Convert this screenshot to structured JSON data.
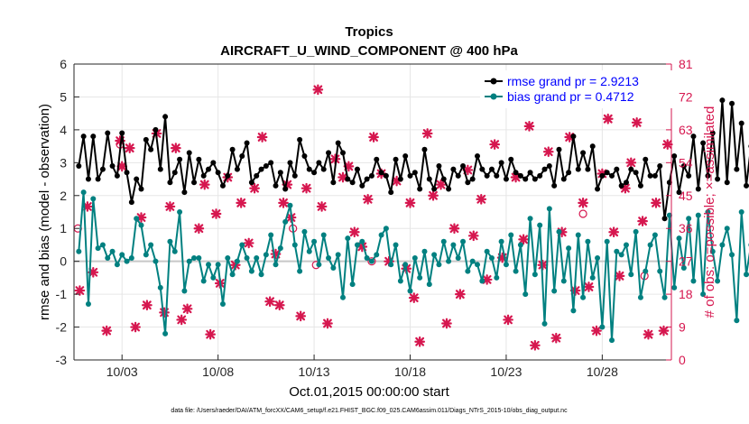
{
  "chart_data": {
    "type": "line",
    "title": "Tropics",
    "subtitle": "AIRCRAFT_U_WIND_COMPONENT @ 400 hPa",
    "xlabel": "Oct.01,2015 00:00:00 start",
    "ylabel_left": "rmse and bias (model - observation)",
    "ylabel_right": "# of obs: o=possible; ×=assimilated",
    "ylim_left": [
      -3,
      6
    ],
    "ylim_right": [
      0,
      81
    ],
    "xlim_days": [
      0.5,
      31.6
    ],
    "x_ticks": [
      {
        "day": 3,
        "label": "10/03"
      },
      {
        "day": 8,
        "label": "10/08"
      },
      {
        "day": 13,
        "label": "10/13"
      },
      {
        "day": 18,
        "label": "10/18"
      },
      {
        "day": 23,
        "label": "10/23"
      },
      {
        "day": 28,
        "label": "10/28"
      }
    ],
    "y_ticks_left": [
      -3,
      -2,
      -1,
      0,
      1,
      2,
      3,
      4,
      5,
      6
    ],
    "y_ticks_right": [
      0,
      9,
      18,
      27,
      36,
      45,
      54,
      63,
      72,
      81
    ],
    "grid": true,
    "legend_position": "top-right",
    "footnote": "data file: /Users/raeder/DAI/ATM_forcXX/CAM6_setup/f.e21.FHIST_BGC.f09_025.CAM6assim.011/Diags_NTrS_2015-10/obs_diag_output.nc",
    "step_days": 0.25,
    "x_start_day": 0.75,
    "series": [
      {
        "name": "rmse",
        "legend": "rmse grand pr = 2.9213",
        "color": "#000000",
        "values": [
          2.9,
          3.8,
          2.5,
          3.8,
          2.5,
          2.8,
          3.9,
          2.9,
          2.6,
          3.9,
          2.7,
          1.8,
          2.5,
          2.2,
          3.7,
          3.4,
          4.0,
          2.8,
          4.4,
          2.4,
          2.7,
          3.1,
          2.1,
          3.3,
          2.4,
          3.1,
          2.6,
          2.8,
          3.0,
          2.7,
          2.3,
          2.6,
          3.4,
          2.8,
          3.2,
          3.6,
          2.4,
          2.6,
          2.8,
          2.9,
          3.0,
          2.3,
          2.7,
          2.2,
          3.0,
          2.6,
          3.7,
          3.2,
          2.8,
          2.7,
          3.0,
          2.8,
          3.3,
          2.4,
          3.6,
          3.3,
          2.5,
          2.4,
          2.8,
          2.3,
          2.5,
          2.6,
          3.1,
          2.7,
          2.6,
          2.1,
          3.1,
          2.5,
          3.2,
          2.6,
          2.7,
          2.2,
          3.4,
          2.5,
          2.2,
          2.9,
          2.5,
          2.2,
          2.8,
          2.6,
          2.9,
          2.4,
          2.5,
          3.2,
          2.8,
          2.6,
          2.8,
          2.6,
          3.0,
          2.5,
          3.1,
          2.7,
          2.6,
          2.5,
          2.7,
          2.5,
          2.6,
          2.8,
          2.9,
          2.3,
          3.4,
          2.5,
          2.7,
          3.8,
          2.8,
          3.3,
          2.8,
          3.5,
          2.2,
          2.6,
          2.7,
          2.6,
          2.8,
          2.3,
          2.4,
          2.8,
          2.7,
          2.3,
          3.1,
          2.6,
          2.6,
          2.9,
          1.3,
          2.4,
          3.2,
          2.1,
          2.9,
          2.6,
          3.8,
          2.2,
          3.6,
          2.6,
          3.9,
          2.5,
          4.9,
          2.4,
          4.8,
          2.8,
          4.2,
          2.3,
          3.5,
          2.9,
          2.6,
          3.3,
          1.7,
          3.7,
          2.8,
          2.3,
          3.5,
          2.9,
          2.8,
          3.4,
          3.2,
          2.9,
          3.8,
          2.4,
          3.3,
          3.8,
          2.6,
          2.7,
          3.0,
          2.7,
          2.6,
          2.3,
          3.5,
          2.6,
          2.9,
          3.7,
          2.5,
          3.0,
          2.7,
          2.6,
          3.6,
          2.5,
          3.8,
          2.4,
          3.0,
          2.8,
          1.9,
          1.7,
          4.1
        ]
      },
      {
        "name": "bias",
        "legend": "bias grand pr = 0.4712",
        "color": "#008080",
        "values": [
          0.3,
          2.1,
          -1.3,
          1.9,
          0.4,
          0.5,
          0.1,
          0.3,
          -0.1,
          0.2,
          0.0,
          0.1,
          1.3,
          1.1,
          0.2,
          0.5,
          0.0,
          -0.8,
          -2.2,
          0.6,
          0.3,
          1.5,
          -0.9,
          0.0,
          0.1,
          0.1,
          -0.6,
          -0.1,
          -0.5,
          -0.1,
          -1.3,
          0.1,
          -0.4,
          0.0,
          0.5,
          0.1,
          -0.3,
          0.1,
          -0.4,
          0.2,
          0.8,
          -0.1,
          0.4,
          1.2,
          1.7,
          0.5,
          -0.3,
          0.9,
          0.3,
          0.6,
          -0.1,
          0.8,
          0.1,
          -0.2,
          0.2,
          -1.1,
          0.7,
          -0.7,
          0.5,
          0.6,
          0.1,
          0.0,
          0.2,
          0.8,
          1.0,
          -0.1,
          0.5,
          -0.6,
          -0.1,
          -0.9,
          0.1,
          -0.5,
          0.3,
          -0.7,
          0.2,
          -0.1,
          0.6,
          0.0,
          0.5,
          0.1,
          0.6,
          -0.3,
          0.0,
          -0.1,
          -0.6,
          0.3,
          0.1,
          -0.5,
          0.6,
          -0.1,
          0.8,
          -0.3,
          0.5,
          -1.0,
          1.3,
          -0.4,
          1.1,
          -1.9,
          1.6,
          -0.9,
          0.9,
          -0.6,
          0.4,
          -1.5,
          0.8,
          -1.1,
          0.6,
          -0.5,
          0.1,
          -2.0,
          0.6,
          -2.4,
          0.3,
          0.2,
          0.5,
          -0.4,
          0.9,
          -1.1,
          -0.3,
          0.5,
          0.8,
          -0.3,
          -1.1,
          1.4,
          -0.8,
          0.7,
          -0.2,
          1.3,
          -0.6,
          1.4,
          -1.0,
          1.5,
          0.3,
          -0.6,
          0.5,
          1.0,
          0.2,
          -1.8,
          1.5,
          -0.4,
          0.5,
          -0.2,
          1.3,
          -0.5,
          0.8,
          -1.1,
          0.6,
          -1.3,
          0.3,
          0.6,
          -1.0,
          0.8,
          0.1,
          -1.8,
          1.2,
          0.4,
          -0.4,
          1.0,
          0.3,
          -0.8,
          0.8,
          -0.7,
          0.5,
          1.0,
          -0.8,
          0.7,
          1.5,
          0.1,
          -0.1,
          0.2,
          1.3,
          0.3,
          1.3,
          1.6,
          0.3,
          -0.5,
          0.1,
          1.4,
          1.2,
          2.3
        ]
      }
    ],
    "obs_color": "#d6174f",
    "obs_possible": [
      {
        "x": 0.7,
        "y": 36
      },
      {
        "x": 2.9,
        "y": 59
      },
      {
        "x": 11.9,
        "y": 36
      },
      {
        "x": 13.1,
        "y": 26
      },
      {
        "x": 16.0,
        "y": 27
      },
      {
        "x": 27.0,
        "y": 40
      },
      {
        "x": 30.2,
        "y": 23
      }
    ],
    "obs_assimilated": [
      {
        "x": 0.8,
        "y": 19
      },
      {
        "x": 1.2,
        "y": 42
      },
      {
        "x": 1.5,
        "y": 24
      },
      {
        "x": 2.2,
        "y": 8
      },
      {
        "x": 2.9,
        "y": 60
      },
      {
        "x": 3.0,
        "y": 53
      },
      {
        "x": 3.4,
        "y": 58
      },
      {
        "x": 3.7,
        "y": 9
      },
      {
        "x": 4.0,
        "y": 39
      },
      {
        "x": 4.3,
        "y": 15
      },
      {
        "x": 4.8,
        "y": 62
      },
      {
        "x": 5.2,
        "y": 13
      },
      {
        "x": 5.5,
        "y": 42
      },
      {
        "x": 5.8,
        "y": 58
      },
      {
        "x": 6.1,
        "y": 11
      },
      {
        "x": 6.4,
        "y": 14
      },
      {
        "x": 7.0,
        "y": 36
      },
      {
        "x": 7.3,
        "y": 48
      },
      {
        "x": 7.6,
        "y": 7
      },
      {
        "x": 7.9,
        "y": 40
      },
      {
        "x": 8.1,
        "y": 21
      },
      {
        "x": 8.5,
        "y": 50
      },
      {
        "x": 8.9,
        "y": 26
      },
      {
        "x": 9.2,
        "y": 43
      },
      {
        "x": 9.6,
        "y": 32
      },
      {
        "x": 9.9,
        "y": 47
      },
      {
        "x": 10.3,
        "y": 61
      },
      {
        "x": 10.7,
        "y": 16
      },
      {
        "x": 11.0,
        "y": 29
      },
      {
        "x": 11.2,
        "y": 15
      },
      {
        "x": 11.4,
        "y": 43
      },
      {
        "x": 11.6,
        "y": 48
      },
      {
        "x": 11.8,
        "y": 39
      },
      {
        "x": 12.3,
        "y": 12
      },
      {
        "x": 12.6,
        "y": 47
      },
      {
        "x": 13.2,
        "y": 74
      },
      {
        "x": 13.4,
        "y": 42
      },
      {
        "x": 13.7,
        "y": 10
      },
      {
        "x": 14.1,
        "y": 55
      },
      {
        "x": 14.5,
        "y": 50
      },
      {
        "x": 14.8,
        "y": 53
      },
      {
        "x": 15.1,
        "y": 35
      },
      {
        "x": 15.5,
        "y": 31
      },
      {
        "x": 15.8,
        "y": 44
      },
      {
        "x": 16.1,
        "y": 61
      },
      {
        "x": 16.5,
        "y": 51
      },
      {
        "x": 16.9,
        "y": 27
      },
      {
        "x": 17.3,
        "y": 49
      },
      {
        "x": 17.8,
        "y": 25
      },
      {
        "x": 18.0,
        "y": 43
      },
      {
        "x": 18.2,
        "y": 17
      },
      {
        "x": 18.5,
        "y": 5
      },
      {
        "x": 18.9,
        "y": 62
      },
      {
        "x": 19.2,
        "y": 45
      },
      {
        "x": 19.6,
        "y": 48
      },
      {
        "x": 19.9,
        "y": 10
      },
      {
        "x": 20.3,
        "y": 36
      },
      {
        "x": 20.6,
        "y": 18
      },
      {
        "x": 21.0,
        "y": 52
      },
      {
        "x": 21.3,
        "y": 34
      },
      {
        "x": 21.7,
        "y": 44
      },
      {
        "x": 22.0,
        "y": 22
      },
      {
        "x": 22.4,
        "y": 59
      },
      {
        "x": 22.8,
        "y": 28
      },
      {
        "x": 23.1,
        "y": 11
      },
      {
        "x": 23.5,
        "y": 50
      },
      {
        "x": 23.9,
        "y": 33
      },
      {
        "x": 24.2,
        "y": 64
      },
      {
        "x": 24.5,
        "y": 4
      },
      {
        "x": 24.9,
        "y": 26
      },
      {
        "x": 25.2,
        "y": 57
      },
      {
        "x": 25.6,
        "y": 6
      },
      {
        "x": 25.9,
        "y": 35
      },
      {
        "x": 26.3,
        "y": 61
      },
      {
        "x": 26.6,
        "y": 19
      },
      {
        "x": 27.0,
        "y": 43
      },
      {
        "x": 27.3,
        "y": 20
      },
      {
        "x": 27.7,
        "y": 8
      },
      {
        "x": 28.0,
        "y": 51
      },
      {
        "x": 28.3,
        "y": 66
      },
      {
        "x": 28.6,
        "y": 35
      },
      {
        "x": 28.9,
        "y": 23
      },
      {
        "x": 29.2,
        "y": 47
      },
      {
        "x": 29.5,
        "y": 54
      },
      {
        "x": 29.8,
        "y": 65
      },
      {
        "x": 30.1,
        "y": 38
      },
      {
        "x": 30.4,
        "y": 7
      },
      {
        "x": 30.8,
        "y": 43
      },
      {
        "x": 31.2,
        "y": 8
      },
      {
        "x": 31.4,
        "y": 59
      }
    ]
  }
}
